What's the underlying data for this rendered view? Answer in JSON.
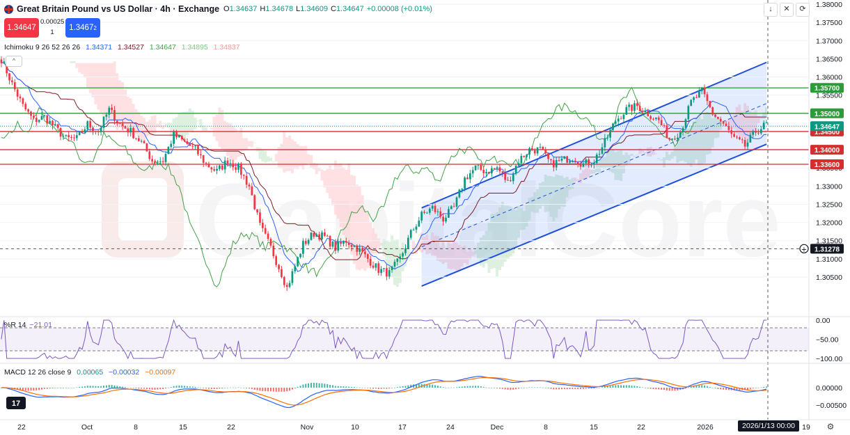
{
  "header": {
    "title": "Great Britain Pound vs US Dollar · 4h · Exchange",
    "o_label": "O",
    "o_value": "1.34637",
    "h_label": "H",
    "h_value": "1.34678",
    "l_label": "L",
    "l_value": "1.34609",
    "c_label": "C",
    "c_value": "1.34647",
    "change": "+0.00008 (+0.01%)",
    "sell_price": "1.34647",
    "spread_top": "0.00025",
    "spread_bottom": "1",
    "buy_price_main": "1.3467",
    "buy_price_sup": "2"
  },
  "indicators": {
    "ichimoku": {
      "label": "Ichimoku 9 26 52 26 26",
      "values": [
        "1.34371",
        "1.34527",
        "1.34647",
        "1.34895",
        "1.34837"
      ],
      "colors": [
        "#2962ff",
        "#801922",
        "#43a047",
        "#a5d6a7",
        "#ef9a9a"
      ]
    },
    "wr": {
      "label": "%R 14",
      "value": "−21.01"
    },
    "macd": {
      "label": "MACD 12 26 close 9",
      "values": [
        "0.00065",
        "−0.00032",
        "−0.00097"
      ],
      "colors": [
        "#089981",
        "#2962ff",
        "#ff6d00"
      ]
    }
  },
  "toolbar_icons": [
    "arrow-down-icon",
    "collapse-icon",
    "screenshot-icon"
  ],
  "colors": {
    "up": "#089981",
    "down": "#f23645",
    "channel": "#1e4fd8",
    "support_line": "#d32f2f",
    "resistance_line": "#2e9b3a"
  },
  "chart_data": [
    {
      "type": "candlestick",
      "title": "Great Britain Pound vs US Dollar · 4h · Exchange",
      "x_tick_labels": [
        "22",
        "Oct",
        "8",
        "15",
        "22",
        "Nov",
        "10",
        "17",
        "24",
        "Dec",
        "8",
        "15",
        "22",
        "2026",
        "19"
      ],
      "ylim": [
        1.3,
        1.38
      ],
      "y_tick_labels": [
        "1.38000",
        "1.37500",
        "1.37000",
        "1.36500",
        "1.36000",
        "1.35500",
        "1.35000",
        "1.34500",
        "1.34000",
        "1.33500",
        "1.33000",
        "1.32500",
        "1.32000",
        "1.31500",
        "1.31000",
        "1.30500"
      ],
      "close_path": [
        [
          0,
          1.365
        ],
        [
          4,
          1.358
        ],
        [
          8,
          1.352
        ],
        [
          12,
          1.348
        ],
        [
          16,
          1.349
        ],
        [
          20,
          1.346
        ],
        [
          24,
          1.343
        ],
        [
          28,
          1.343
        ],
        [
          32,
          1.347
        ],
        [
          36,
          1.345
        ],
        [
          40,
          1.351
        ],
        [
          44,
          1.347
        ],
        [
          48,
          1.345
        ],
        [
          52,
          1.342
        ],
        [
          56,
          1.337
        ],
        [
          60,
          1.337
        ],
        [
          64,
          1.344
        ],
        [
          68,
          1.342
        ],
        [
          72,
          1.34
        ],
        [
          76,
          1.336
        ],
        [
          80,
          1.334
        ],
        [
          84,
          1.337
        ],
        [
          88,
          1.335
        ],
        [
          92,
          1.33
        ],
        [
          96,
          1.319
        ],
        [
          100,
          1.313
        ],
        [
          104,
          1.306
        ],
        [
          106,
          1.302
        ],
        [
          108,
          1.306
        ],
        [
          112,
          1.314
        ],
        [
          116,
          1.317
        ],
        [
          120,
          1.316
        ],
        [
          124,
          1.313
        ],
        [
          128,
          1.315
        ],
        [
          132,
          1.313
        ],
        [
          136,
          1.31
        ],
        [
          140,
          1.307
        ],
        [
          144,
          1.306
        ],
        [
          148,
          1.31
        ],
        [
          152,
          1.317
        ],
        [
          156,
          1.322
        ],
        [
          160,
          1.324
        ],
        [
          164,
          1.321
        ],
        [
          168,
          1.324
        ],
        [
          172,
          1.332
        ],
        [
          176,
          1.335
        ],
        [
          180,
          1.334
        ],
        [
          184,
          1.335
        ],
        [
          188,
          1.331
        ],
        [
          192,
          1.337
        ],
        [
          196,
          1.34
        ],
        [
          200,
          1.34
        ],
        [
          204,
          1.336
        ],
        [
          208,
          1.337
        ],
        [
          212,
          1.338
        ],
        [
          216,
          1.336
        ],
        [
          220,
          1.337
        ],
        [
          224,
          1.342
        ],
        [
          228,
          1.348
        ],
        [
          232,
          1.351
        ],
        [
          236,
          1.352
        ],
        [
          240,
          1.35
        ],
        [
          244,
          1.348
        ],
        [
          248,
          1.343
        ],
        [
          252,
          1.345
        ],
        [
          256,
          1.353
        ],
        [
          260,
          1.356
        ],
        [
          264,
          1.35
        ],
        [
          268,
          1.347
        ],
        [
          272,
          1.343
        ],
        [
          276,
          1.341
        ],
        [
          280,
          1.345
        ],
        [
          284,
          1.347
        ]
      ],
      "channel_upper": [
        [
          156,
          1.324
        ],
        [
          284,
          1.364
        ]
      ],
      "channel_lower": [
        [
          156,
          1.3025
        ],
        [
          284,
          1.3415
        ]
      ],
      "channel_mid": [
        [
          156,
          1.3133
        ],
        [
          284,
          1.3527
        ]
      ],
      "horizontal_levels": [
        {
          "value": 1.357,
          "label": "1.35700",
          "color": "#2e9b3a"
        },
        {
          "value": 1.35,
          "label": "1.35000",
          "color": "#2e9b3a"
        },
        {
          "value": 1.345,
          "label": "1.34500",
          "color": "#d32f2f"
        },
        {
          "value": 1.34,
          "label": "1.34000",
          "color": "#d32f2f"
        },
        {
          "value": 1.336,
          "label": "1.33600",
          "color": "#d32f2f"
        }
      ],
      "last_price": {
        "value": 1.34647,
        "label": "1.34647"
      },
      "crosshair": {
        "value": 1.31278,
        "label": "1.31278",
        "date_label": "2026/1/13  00:00"
      }
    },
    {
      "type": "line",
      "title": "%R 14",
      "ylim": [
        -100,
        0
      ],
      "y_tick_labels": [
        "0.00",
        "−50.00",
        "−100.00"
      ],
      "bands": [
        -20,
        -80
      ],
      "last_value": -21.01
    },
    {
      "type": "histogram+line",
      "title": "MACD 12 26 close 9",
      "y_tick_labels": [
        "0.00000",
        "−0.00500"
      ],
      "macd_last": -0.00032,
      "signal_last": -0.00097,
      "hist_last": 0.00065
    }
  ]
}
